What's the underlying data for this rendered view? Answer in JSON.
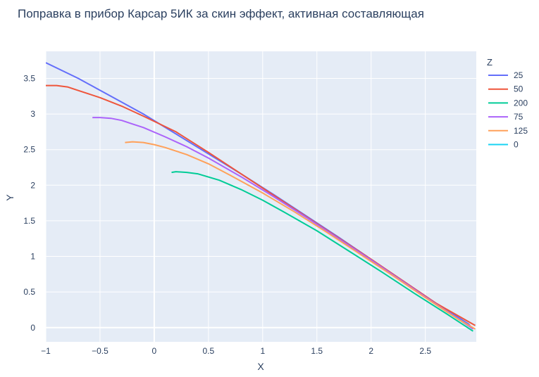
{
  "chart_data": {
    "type": "line",
    "title": "Поправка в прибор Карсар 5ИК за скин эффект, активная составляющая",
    "xlabel": "X",
    "ylabel": "Y",
    "xlim": [
      -1,
      2.97
    ],
    "ylim": [
      -0.2,
      3.88
    ],
    "x_ticks": [
      -1,
      -0.5,
      0,
      0.5,
      1,
      1.5,
      2,
      2.5
    ],
    "x_tick_labels": [
      "−1",
      "−0.5",
      "0",
      "0.5",
      "1",
      "1.5",
      "2",
      "2.5"
    ],
    "y_ticks": [
      0,
      0.5,
      1,
      1.5,
      2,
      2.5,
      3,
      3.5
    ],
    "y_tick_labels": [
      "0",
      "0.5",
      "1",
      "1.5",
      "2",
      "2.5",
      "3",
      "3.5"
    ],
    "grid": true,
    "legend_title": "Z",
    "legend_position": "right",
    "plot_bg": "#e5ecf6",
    "series": [
      {
        "name": "25",
        "color": "#636efa",
        "x": [
          -1.0,
          -0.7,
          -0.4,
          -0.1,
          0.2,
          0.5,
          0.8,
          1.1,
          1.4,
          1.7,
          2.0,
          2.3,
          2.6,
          2.9,
          2.91,
          2.92
        ],
        "y": [
          3.72,
          3.5,
          3.25,
          3.0,
          2.72,
          2.44,
          2.16,
          1.87,
          1.57,
          1.27,
          0.96,
          0.65,
          0.34,
          0.05,
          0.03,
          0.0
        ]
      },
      {
        "name": "50",
        "color": "#ef553b",
        "x": [
          -1.0,
          -0.9,
          -0.8,
          -0.7,
          -0.5,
          -0.3,
          -0.1,
          0.2,
          0.5,
          0.8,
          1.1,
          1.4,
          1.7,
          2.0,
          2.3,
          2.6,
          2.96
        ],
        "y": [
          3.4,
          3.4,
          3.38,
          3.33,
          3.23,
          3.11,
          2.97,
          2.75,
          2.46,
          2.16,
          1.86,
          1.56,
          1.26,
          0.96,
          0.65,
          0.34,
          0.03
        ]
      },
      {
        "name": "200",
        "color": "#00cc96",
        "x": [
          0.16,
          0.2,
          0.3,
          0.4,
          0.6,
          0.8,
          1.0,
          1.2,
          1.5,
          1.8,
          2.1,
          2.4,
          2.7,
          2.94
        ],
        "y": [
          2.18,
          2.19,
          2.18,
          2.16,
          2.07,
          1.94,
          1.79,
          1.62,
          1.36,
          1.07,
          0.78,
          0.48,
          0.19,
          -0.05
        ]
      },
      {
        "name": "75",
        "color": "#ab63fa",
        "x": [
          -0.57,
          -0.5,
          -0.4,
          -0.3,
          -0.2,
          -0.1,
          0.1,
          0.3,
          0.5,
          0.8,
          1.1,
          1.4,
          1.7,
          2.0,
          2.3,
          2.6,
          2.94
        ],
        "y": [
          2.95,
          2.95,
          2.94,
          2.91,
          2.86,
          2.81,
          2.68,
          2.54,
          2.38,
          2.12,
          1.84,
          1.55,
          1.25,
          0.95,
          0.64,
          0.33,
          -0.02
        ]
      },
      {
        "name": "125",
        "color": "#ffa15a",
        "x": [
          -0.27,
          -0.2,
          -0.1,
          0.0,
          0.1,
          0.3,
          0.5,
          0.7,
          1.0,
          1.3,
          1.6,
          1.9,
          2.2,
          2.5,
          2.8,
          2.96
        ],
        "y": [
          2.6,
          2.61,
          2.6,
          2.57,
          2.53,
          2.43,
          2.3,
          2.14,
          1.89,
          1.62,
          1.33,
          1.03,
          0.73,
          0.42,
          0.12,
          -0.02
        ]
      },
      {
        "name": "0",
        "color": "#19d3f3",
        "x": [],
        "y": []
      }
    ]
  }
}
